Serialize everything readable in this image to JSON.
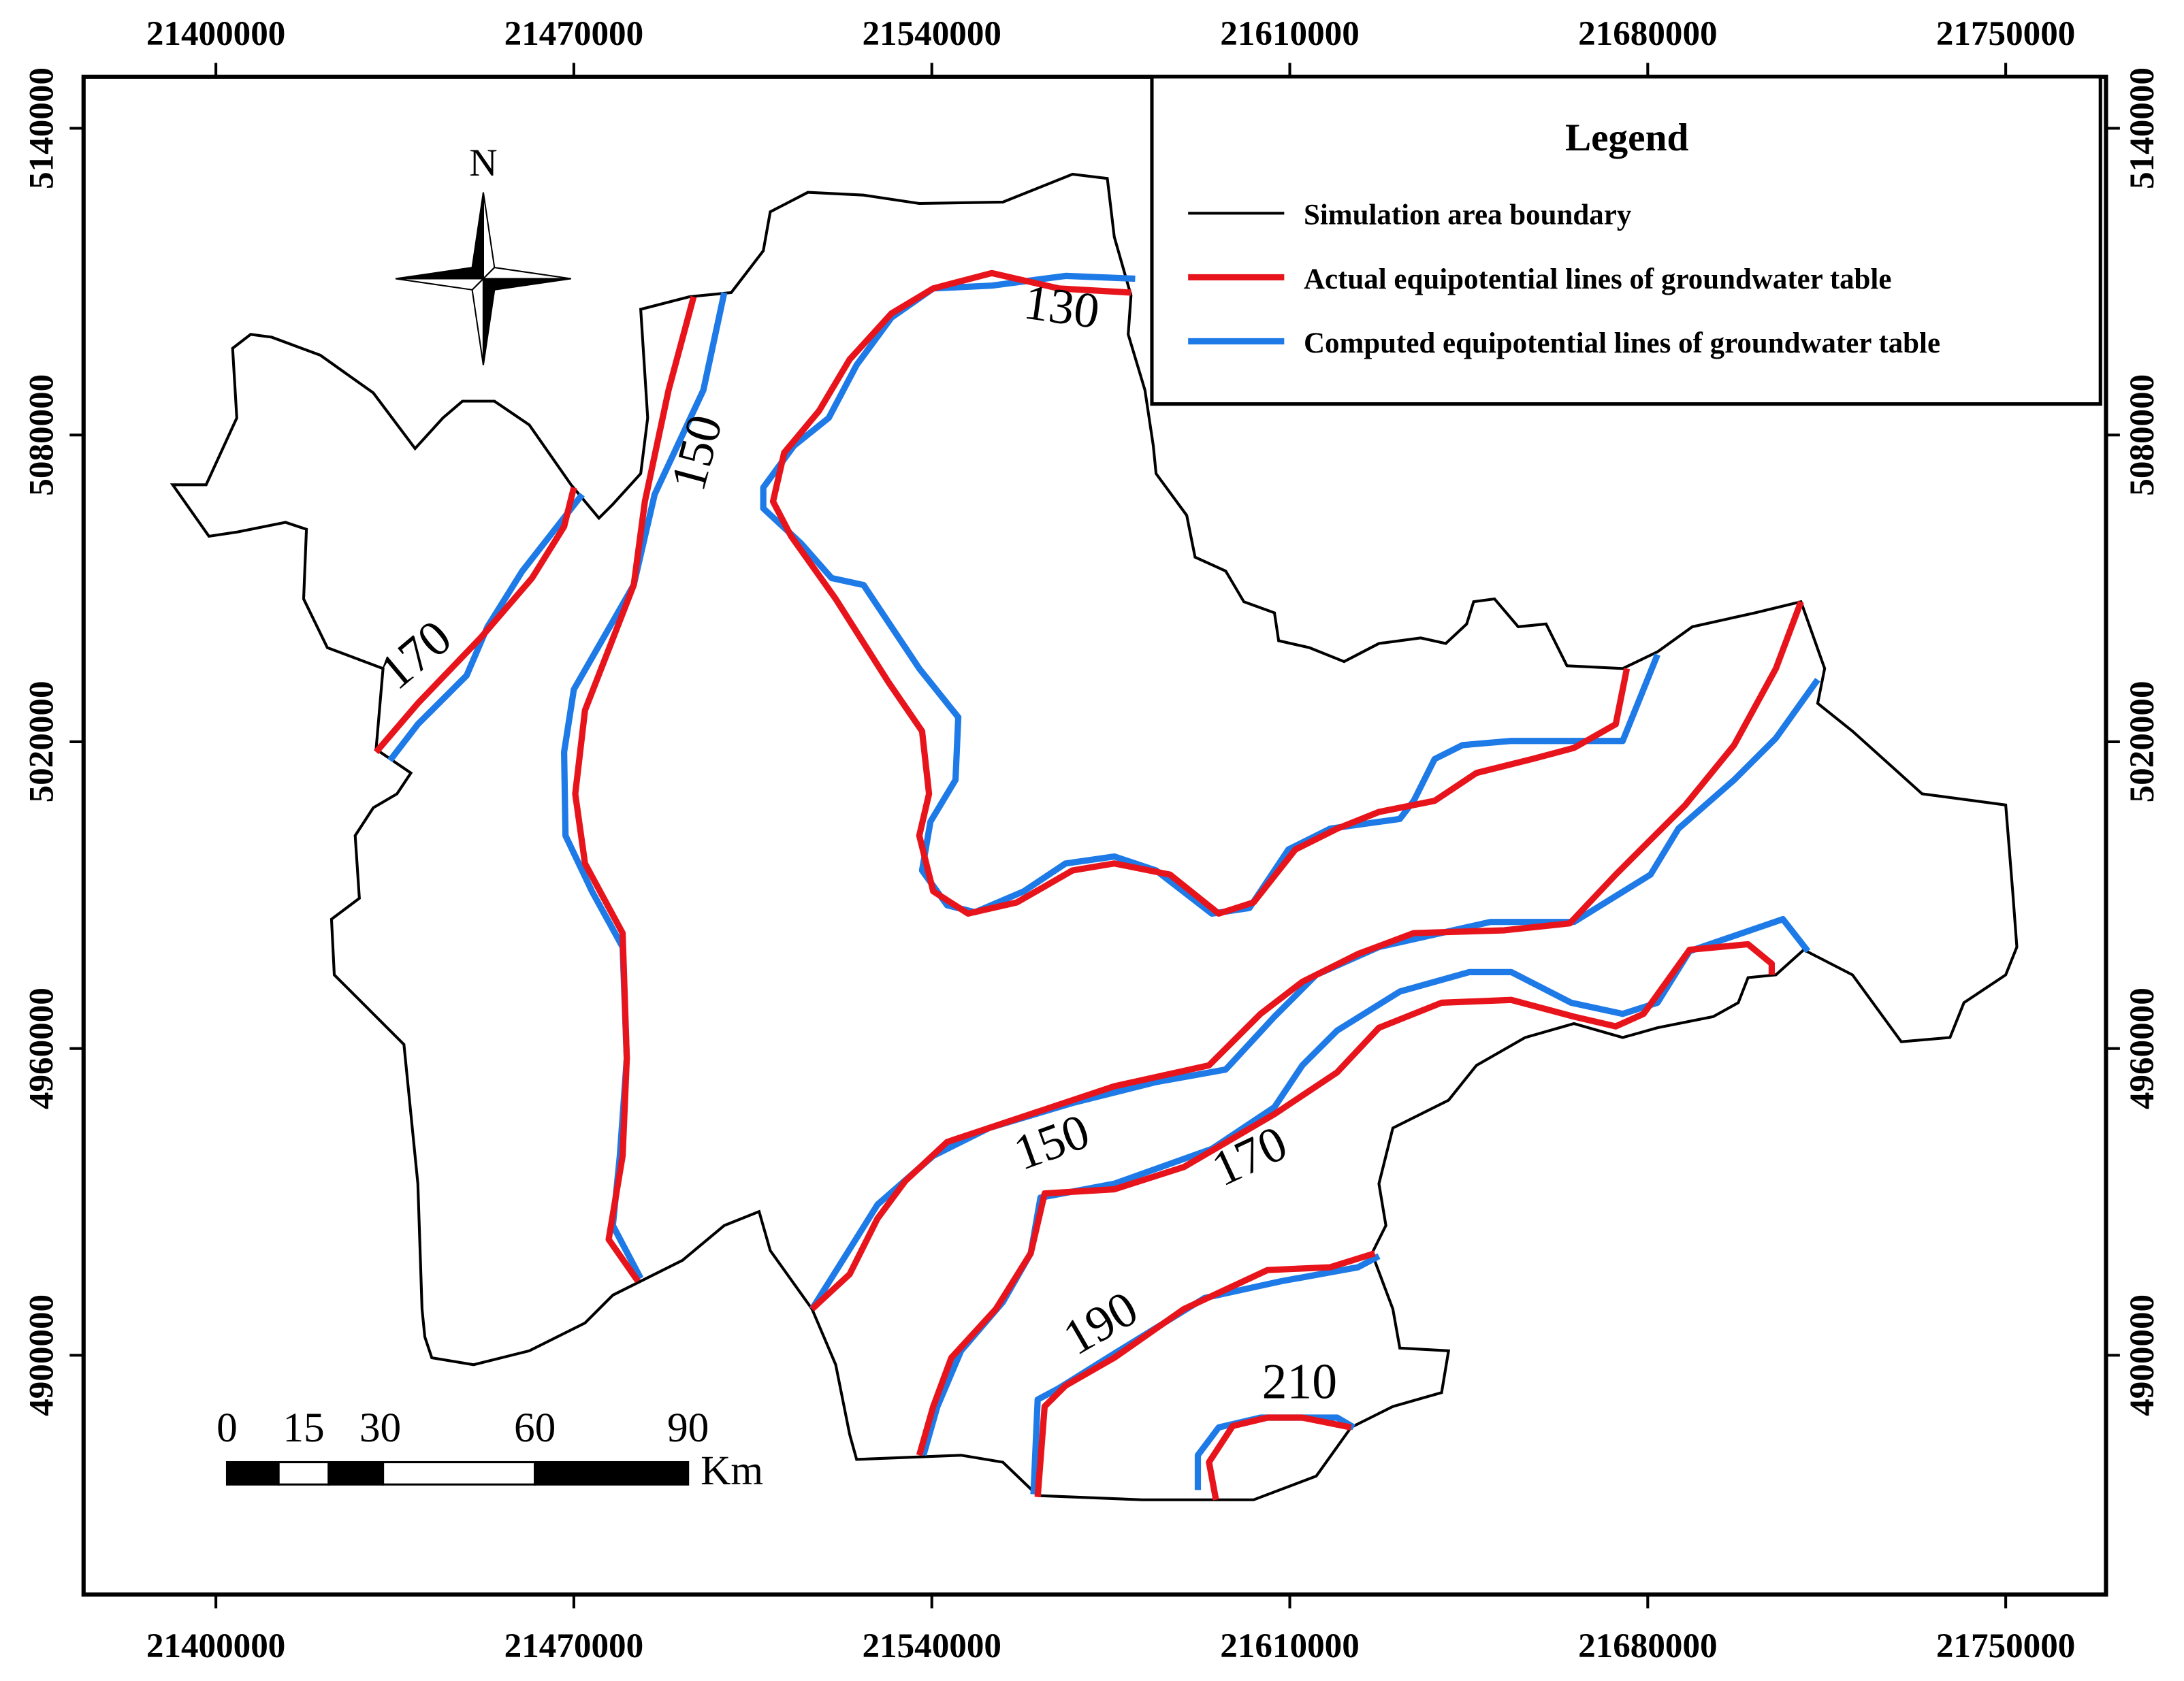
{
  "x_ticks": [
    21400000,
    21470000,
    21540000,
    21610000,
    21680000,
    21750000
  ],
  "y_ticks": [
    5140000,
    5080000,
    5020000,
    4960000,
    4900000
  ],
  "north": "N",
  "legend": {
    "title": "Legend",
    "items": [
      "Simulation area boundary",
      "Actual equipotential lines of groundwater table",
      "Computed equipotential lines of groundwater table"
    ]
  },
  "contour_labels": [
    130,
    150,
    170,
    150,
    170,
    190,
    210
  ],
  "scale_bar": {
    "labels": [
      0,
      15,
      30,
      60,
      90
    ],
    "unit": "Km"
  }
}
